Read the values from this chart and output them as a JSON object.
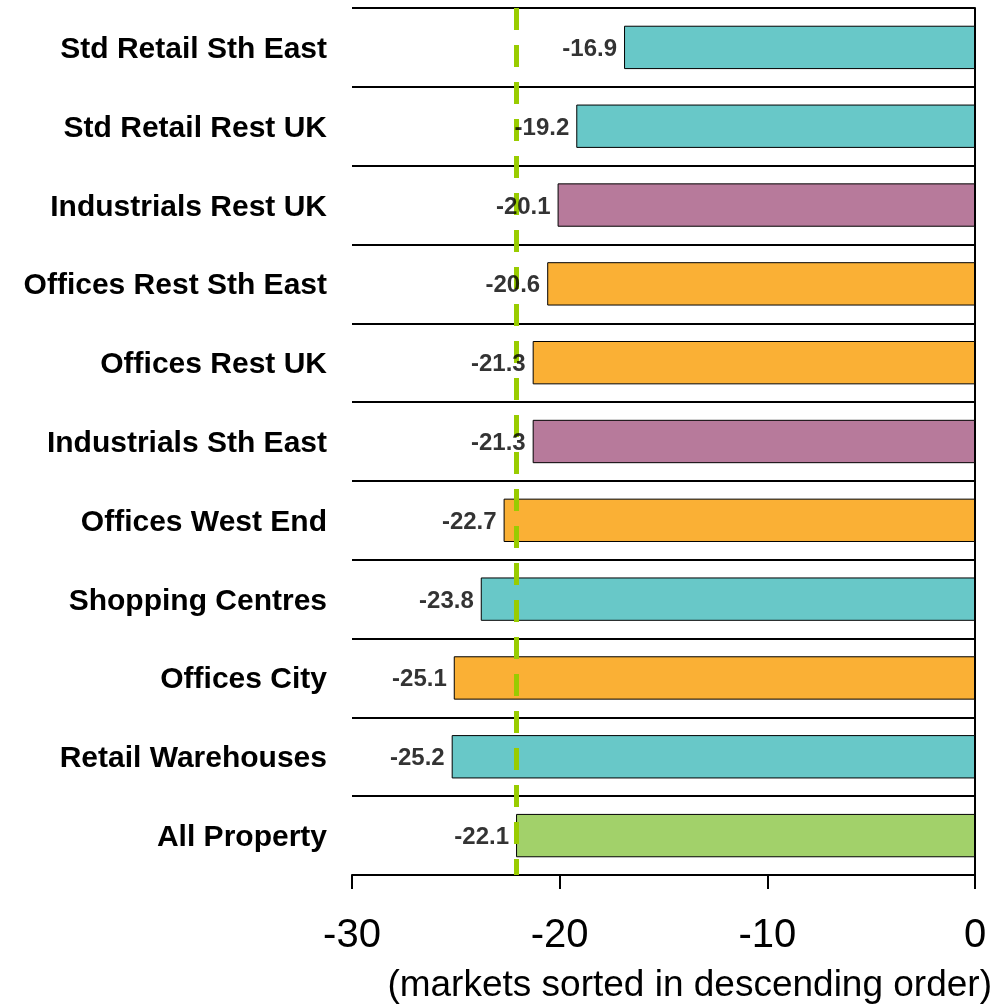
{
  "chart_data": {
    "type": "bar",
    "orientation": "horizontal",
    "xlabel": "(markets sorted in descending order)",
    "categories": [
      "Std Retail Sth East",
      "Std Retail Rest UK",
      "Industrials Rest UK",
      "Offices Rest Sth East",
      "Offices Rest UK",
      "Industrials Sth East",
      "Offices West End",
      "Shopping Centres",
      "Offices City",
      "Retail Warehouses",
      "All Property"
    ],
    "values": [
      -16.9,
      -19.2,
      -20.1,
      -20.6,
      -21.3,
      -21.3,
      -22.7,
      -23.8,
      -25.1,
      -25.2,
      -22.1
    ],
    "colors": [
      "#68c8c8",
      "#68c8c8",
      "#b77a9b",
      "#fab035",
      "#fab035",
      "#b77a9b",
      "#fab035",
      "#68c8c8",
      "#fab035",
      "#68c8c8",
      "#a2d16a"
    ],
    "xlim": [
      -30,
      0
    ],
    "xticks": [
      -30,
      -20,
      -10,
      0
    ],
    "data_labels": true,
    "grid": "y",
    "ref_lines": [
      {
        "axis": "x",
        "value": -22.1,
        "color": "#99cc00",
        "line_style": "dashed"
      }
    ]
  }
}
